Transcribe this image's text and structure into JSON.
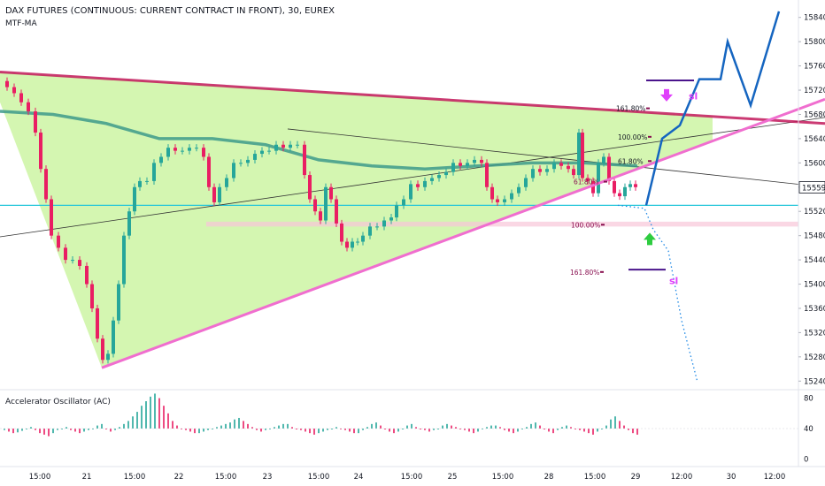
{
  "header": {
    "title": "DAX FUTURES (CONTINUOUS: CURRENT CONTRACT IN FRONT), 30, EUREX",
    "indicator": "MTF-MA"
  },
  "oscillator": {
    "title": "Accelerator Oscillator (AC)",
    "y_ticks": [
      "80",
      "40",
      "0"
    ]
  },
  "price_axis": {
    "ticks": [
      "15840",
      "15800",
      "15760",
      "15720",
      "15680",
      "15640",
      "15600",
      "15560",
      "15520",
      "15480",
      "15440",
      "15400",
      "15360",
      "15320",
      "15280",
      "15240"
    ],
    "last_price": "15559"
  },
  "time_axis": {
    "labels": [
      "15:00",
      "21",
      "15:00",
      "22",
      "15:00",
      "23",
      "15:00",
      "24",
      "15:00",
      "25",
      "15:00",
      "28",
      "15:00",
      "29",
      "12:00",
      "30",
      "12:00"
    ]
  },
  "annotations": {
    "fib_labels": [
      "161.80%",
      "100.00%",
      "61.80%",
      "61.80%",
      "100.00%",
      "161.80%"
    ],
    "sl_labels": [
      "sl",
      "sl"
    ]
  },
  "colors": {
    "triangle_fill": "#ccf5a3",
    "upper_trendline": "#c2185b",
    "lower_trendline": "#f06ecf",
    "moving_average": "#3d9a8b",
    "horizontal_level": "#26c6da",
    "support_zone": "#f8c6d9",
    "bull_candle": "#26a69a",
    "bear_candle": "#e91e63",
    "projection_bull": "#1565c0",
    "projection_bear": "#1e88e5",
    "arrow_down": "#e040fb",
    "arrow_up": "#2ecc40"
  },
  "chart_data": [
    {
      "type": "candlestick",
      "title": "DAX FUTURES (CONTINUOUS: CURRENT CONTRACT IN FRONT), 30, EUREX",
      "ylim": [
        15220,
        15860
      ],
      "y_ticks": [
        15840,
        15800,
        15760,
        15720,
        15680,
        15640,
        15600,
        15560,
        15520,
        15480,
        15440,
        15400,
        15360,
        15320,
        15280,
        15240
      ],
      "x_tick_labels": [
        "15:00",
        "21",
        "15:00",
        "22",
        "15:00",
        "23",
        "15:00",
        "24",
        "15:00",
        "25",
        "15:00",
        "28",
        "15:00",
        "29",
        "12:00",
        "30",
        "12:00"
      ],
      "last_price": 15559,
      "price_path": [
        [
          0,
          15735
        ],
        [
          8,
          15725
        ],
        [
          16,
          15715
        ],
        [
          24,
          15700
        ],
        [
          32,
          15685
        ],
        [
          40,
          15650
        ],
        [
          46,
          15590
        ],
        [
          52,
          15540
        ],
        [
          58,
          15480
        ],
        [
          66,
          15460
        ],
        [
          74,
          15440
        ],
        [
          82,
          15440
        ],
        [
          90,
          15430
        ],
        [
          98,
          15400
        ],
        [
          104,
          15360
        ],
        [
          110,
          15310
        ],
        [
          116,
          15275
        ],
        [
          122,
          15285
        ],
        [
          128,
          15340
        ],
        [
          134,
          15400
        ],
        [
          140,
          15480
        ],
        [
          146,
          15520
        ],
        [
          152,
          15560
        ],
        [
          158,
          15570
        ],
        [
          166,
          15570
        ],
        [
          174,
          15600
        ],
        [
          182,
          15610
        ],
        [
          190,
          15625
        ],
        [
          198,
          15620
        ],
        [
          206,
          15620
        ],
        [
          214,
          15625
        ],
        [
          222,
          15625
        ],
        [
          230,
          15610
        ],
        [
          236,
          15560
        ],
        [
          242,
          15535
        ],
        [
          248,
          15560
        ],
        [
          256,
          15575
        ],
        [
          264,
          15600
        ],
        [
          272,
          15600
        ],
        [
          280,
          15605
        ],
        [
          288,
          15615
        ],
        [
          296,
          15620
        ],
        [
          304,
          15620
        ],
        [
          312,
          15630
        ],
        [
          320,
          15625
        ],
        [
          328,
          15630
        ],
        [
          336,
          15630
        ],
        [
          344,
          15580
        ],
        [
          350,
          15540
        ],
        [
          356,
          15520
        ],
        [
          362,
          15505
        ],
        [
          368,
          15560
        ],
        [
          374,
          15540
        ],
        [
          380,
          15500
        ],
        [
          386,
          15470
        ],
        [
          392,
          15460
        ],
        [
          398,
          15470
        ],
        [
          404,
          15470
        ],
        [
          410,
          15480
        ],
        [
          418,
          15495
        ],
        [
          426,
          15495
        ],
        [
          434,
          15505
        ],
        [
          442,
          15510
        ],
        [
          448,
          15530
        ],
        [
          456,
          15540
        ],
        [
          464,
          15565
        ],
        [
          472,
          15560
        ],
        [
          480,
          15570
        ],
        [
          488,
          15575
        ],
        [
          496,
          15580
        ],
        [
          504,
          15585
        ],
        [
          512,
          15600
        ],
        [
          520,
          15595
        ],
        [
          528,
          15600
        ],
        [
          536,
          15605
        ],
        [
          544,
          15600
        ],
        [
          550,
          15560
        ],
        [
          556,
          15540
        ],
        [
          562,
          15535
        ],
        [
          570,
          15540
        ],
        [
          578,
          15550
        ],
        [
          586,
          15560
        ],
        [
          594,
          15575
        ],
        [
          602,
          15590
        ],
        [
          610,
          15585
        ],
        [
          618,
          15590
        ],
        [
          626,
          15600
        ],
        [
          634,
          15595
        ],
        [
          642,
          15590
        ],
        [
          648,
          15580
        ],
        [
          654,
          15650
        ],
        [
          658,
          15575
        ],
        [
          664,
          15570
        ],
        [
          670,
          15550
        ],
        [
          676,
          15600
        ],
        [
          682,
          15610
        ],
        [
          688,
          15570
        ],
        [
          694,
          15550
        ],
        [
          700,
          15545
        ],
        [
          706,
          15560
        ],
        [
          712,
          15565
        ],
        [
          718,
          15560
        ]
      ],
      "moving_average": [
        [
          0,
          15685
        ],
        [
          60,
          15680
        ],
        [
          120,
          15665
        ],
        [
          180,
          15640
        ],
        [
          240,
          15640
        ],
        [
          300,
          15630
        ],
        [
          360,
          15605
        ],
        [
          420,
          15595
        ],
        [
          480,
          15590
        ],
        [
          540,
          15595
        ],
        [
          600,
          15600
        ],
        [
          660,
          15600
        ],
        [
          720,
          15595
        ]
      ],
      "trendlines": [
        {
          "name": "upper",
          "points": [
            [
              0,
              15750
            ],
            [
              932,
              15665
            ]
          ]
        },
        {
          "name": "lower",
          "points": [
            [
              115,
              15262
            ],
            [
              932,
              15705
            ]
          ]
        },
        {
          "name": "long",
          "points": [
            [
              0,
              15478
            ],
            [
              932,
              15675
            ]
          ]
        },
        {
          "name": "short",
          "points": [
            [
              325,
              15656
            ],
            [
              932,
              15560
            ]
          ]
        }
      ],
      "projection_bull": [
        [
          730,
          15530
        ],
        [
          748,
          15640
        ],
        [
          768,
          15662
        ],
        [
          790,
          15738
        ],
        [
          814,
          15738
        ],
        [
          822,
          15800
        ],
        [
          848,
          15695
        ],
        [
          880,
          15850
        ]
      ],
      "projection_bear": [
        [
          698,
          15530
        ],
        [
          728,
          15525
        ],
        [
          738,
          15490
        ],
        [
          755,
          15455
        ],
        [
          770,
          15340
        ],
        [
          788,
          15238
        ]
      ],
      "horizontal_level": 15530,
      "support_zone": [
        15495,
        15503
      ]
    },
    {
      "type": "bar",
      "title": "Accelerator Oscillator (AC)",
      "ylim": [
        -10,
        90
      ],
      "y_ticks": [
        80,
        40,
        0
      ],
      "baseline": 40,
      "values": [
        38,
        36,
        34,
        35,
        37,
        40,
        42,
        38,
        34,
        32,
        30,
        34,
        38,
        40,
        42,
        38,
        36,
        34,
        36,
        38,
        40,
        44,
        46,
        40,
        36,
        38,
        42,
        46,
        50,
        56,
        62,
        70,
        76,
        82,
        86,
        80,
        70,
        60,
        50,
        44,
        40,
        38,
        36,
        34,
        34,
        36,
        38,
        40,
        42,
        44,
        46,
        48,
        52,
        54,
        50,
        46,
        42,
        38,
        36,
        38,
        40,
        42,
        44,
        46,
        46,
        42,
        40,
        38,
        36,
        34,
        32,
        34,
        36,
        38,
        40,
        42,
        40,
        38,
        36,
        34,
        34,
        38,
        42,
        46,
        48,
        44,
        40,
        36,
        34,
        36,
        40,
        44,
        46,
        42,
        40,
        38,
        36,
        38,
        40,
        44,
        46,
        44,
        42,
        40,
        38,
        36,
        34,
        36,
        40,
        42,
        44,
        44,
        42,
        38,
        36,
        34,
        36,
        40,
        42,
        46,
        48,
        44,
        40,
        36,
        34,
        38,
        42,
        44,
        42,
        40,
        38,
        36,
        34,
        32,
        36,
        40,
        44,
        52,
        56,
        50,
        44,
        38,
        34,
        32,
        36,
        40,
        42,
        44
      ]
    }
  ]
}
